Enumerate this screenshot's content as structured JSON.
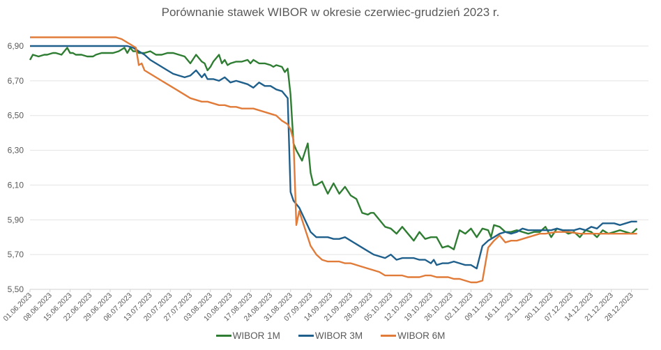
{
  "chart_data": {
    "type": "line",
    "title": "Porównanie stawek WIBOR w okresie czerwiec-grudzień 2023 r.",
    "xlabel": "",
    "ylabel": "",
    "ylim": [
      5.5,
      6.98
    ],
    "yticks": [
      "5,50",
      "5,70",
      "5,90",
      "6,10",
      "6,30",
      "6,50",
      "6,70",
      "6,90"
    ],
    "ytick_values": [
      5.5,
      5.7,
      5.9,
      6.1,
      6.3,
      6.5,
      6.7,
      6.9
    ],
    "grid": true,
    "legend_position": "bottom",
    "x_ticks": [
      "01.06.2023",
      "08.06.2023",
      "15.06.2023",
      "22.06.2023",
      "29.06.2023",
      "06.07.2023",
      "13.07.2023",
      "20.07.2023",
      "27.07.2023",
      "03.08.2023",
      "10.08.2023",
      "17.08.2023",
      "24.08.2023",
      "31.08.2023",
      "07.09.2023",
      "14.09.2023",
      "21.09.2023",
      "28.09.2023",
      "05.10.2023",
      "12.10.2023",
      "19.10.2023",
      "26.10.2023",
      "02.11.2023",
      "09.11.2023",
      "16.11.2023",
      "23.11.2023",
      "30.11.2023",
      "07.12.2023",
      "14.12.2023",
      "21.12.2023",
      "28.12.2023"
    ],
    "x_days_note": "x values are days since 01.06.2023",
    "series": [
      {
        "name": "WIBOR 1M",
        "color": "#2E7D32",
        "x": [
          0,
          1,
          3,
          5,
          6,
          8,
          9,
          11,
          13,
          14,
          15,
          16,
          18,
          20,
          22,
          23,
          25,
          27,
          29,
          31,
          33,
          34,
          35,
          36,
          37,
          38,
          40,
          42,
          44,
          46,
          48,
          50,
          52,
          54,
          56,
          58,
          60,
          61,
          62,
          63,
          64,
          66,
          67,
          68,
          69,
          70,
          72,
          74,
          76,
          77,
          78,
          80,
          82,
          84,
          85,
          86,
          88,
          89,
          90,
          91,
          92,
          93,
          95,
          97,
          98,
          99,
          100,
          102,
          104,
          106,
          108,
          110,
          112,
          114,
          116,
          118,
          119,
          120,
          122,
          124,
          126,
          128,
          130,
          132,
          133,
          134,
          136,
          138,
          140,
          142,
          144,
          146,
          148,
          150,
          152,
          154,
          156,
          158,
          160,
          161,
          162,
          164,
          166,
          168,
          170,
          172,
          174,
          176,
          178,
          180,
          182,
          184,
          186,
          188,
          190,
          192,
          194,
          196,
          198,
          200,
          202,
          204,
          206,
          208,
          210,
          212
        ],
        "values": [
          6.82,
          6.85,
          6.84,
          6.85,
          6.85,
          6.86,
          6.86,
          6.85,
          6.89,
          6.86,
          6.86,
          6.85,
          6.85,
          6.84,
          6.84,
          6.85,
          6.86,
          6.86,
          6.86,
          6.87,
          6.89,
          6.86,
          6.89,
          6.87,
          6.87,
          6.86,
          6.86,
          6.87,
          6.85,
          6.85,
          6.86,
          6.86,
          6.85,
          6.84,
          6.8,
          6.85,
          6.81,
          6.8,
          6.76,
          6.78,
          6.81,
          6.85,
          6.8,
          6.82,
          6.79,
          6.8,
          6.81,
          6.81,
          6.82,
          6.8,
          6.82,
          6.8,
          6.8,
          6.79,
          6.78,
          6.79,
          6.78,
          6.75,
          6.77,
          6.62,
          6.34,
          6.3,
          6.24,
          6.34,
          6.17,
          6.1,
          6.1,
          6.12,
          6.05,
          6.11,
          6.05,
          6.09,
          6.04,
          6.02,
          5.94,
          5.93,
          5.94,
          5.94,
          5.9,
          5.86,
          5.85,
          5.82,
          5.86,
          5.82,
          5.8,
          5.78,
          5.83,
          5.79,
          5.8,
          5.8,
          5.74,
          5.75,
          5.73,
          5.84,
          5.82,
          5.85,
          5.8,
          5.85,
          5.84,
          5.8,
          5.87,
          5.86,
          5.83,
          5.83,
          5.84,
          5.83,
          5.82,
          5.83,
          5.83,
          5.86,
          5.8,
          5.85,
          5.84,
          5.82,
          5.83,
          5.8,
          5.84,
          5.83,
          5.8,
          5.84,
          5.82,
          5.83,
          5.84,
          5.83,
          5.82,
          5.85
        ]
      },
      {
        "name": "WIBOR 3M",
        "color": "#1F5F8B",
        "x": [
          0,
          10,
          20,
          30,
          34,
          36,
          38,
          40,
          42,
          44,
          46,
          48,
          50,
          52,
          54,
          56,
          58,
          60,
          61,
          62,
          64,
          66,
          68,
          70,
          72,
          74,
          76,
          78,
          80,
          82,
          84,
          86,
          88,
          90,
          91,
          92,
          93,
          94,
          96,
          98,
          100,
          102,
          104,
          106,
          108,
          110,
          112,
          114,
          116,
          118,
          120,
          122,
          124,
          126,
          128,
          130,
          132,
          134,
          136,
          138,
          140,
          141,
          142,
          144,
          146,
          148,
          150,
          152,
          154,
          156,
          158,
          160,
          162,
          164,
          166,
          168,
          170,
          172,
          174,
          176,
          178,
          180,
          182,
          184,
          186,
          188,
          190,
          192,
          194,
          196,
          198,
          200,
          202,
          204,
          206,
          208,
          210,
          212
        ],
        "values": [
          6.9,
          6.9,
          6.9,
          6.9,
          6.9,
          6.89,
          6.87,
          6.85,
          6.82,
          6.8,
          6.78,
          6.76,
          6.74,
          6.73,
          6.72,
          6.73,
          6.76,
          6.72,
          6.74,
          6.71,
          6.71,
          6.7,
          6.72,
          6.69,
          6.7,
          6.69,
          6.68,
          6.66,
          6.69,
          6.67,
          6.67,
          6.65,
          6.64,
          6.6,
          6.06,
          6.01,
          5.99,
          5.97,
          5.9,
          5.83,
          5.8,
          5.8,
          5.8,
          5.79,
          5.79,
          5.8,
          5.78,
          5.76,
          5.74,
          5.72,
          5.7,
          5.69,
          5.68,
          5.7,
          5.67,
          5.68,
          5.68,
          5.68,
          5.67,
          5.67,
          5.65,
          5.67,
          5.64,
          5.65,
          5.65,
          5.66,
          5.65,
          5.64,
          5.64,
          5.62,
          5.75,
          5.78,
          5.8,
          5.82,
          5.83,
          5.82,
          5.83,
          5.85,
          5.84,
          5.84,
          5.84,
          5.84,
          5.84,
          5.85,
          5.84,
          5.84,
          5.84,
          5.85,
          5.84,
          5.86,
          5.85,
          5.88,
          5.88,
          5.88,
          5.87,
          5.88,
          5.89,
          5.89
        ]
      },
      {
        "name": "WIBOR 6M",
        "color": "#E07B39",
        "x": [
          0,
          20,
          30,
          32,
          34,
          35,
          36,
          37,
          38,
          39,
          40,
          42,
          44,
          46,
          48,
          50,
          52,
          54,
          56,
          58,
          60,
          62,
          64,
          66,
          68,
          70,
          72,
          74,
          76,
          78,
          80,
          82,
          84,
          86,
          88,
          90,
          91,
          92,
          93,
          94,
          96,
          98,
          100,
          102,
          104,
          106,
          108,
          110,
          112,
          114,
          116,
          118,
          120,
          122,
          124,
          126,
          128,
          130,
          132,
          134,
          136,
          138,
          140,
          142,
          144,
          146,
          148,
          150,
          152,
          154,
          156,
          158,
          160,
          162,
          164,
          166,
          168,
          170,
          172,
          174,
          176,
          178,
          180,
          184,
          188,
          192,
          196,
          200,
          204,
          208,
          212
        ],
        "values": [
          6.95,
          6.95,
          6.95,
          6.94,
          6.92,
          6.91,
          6.9,
          6.89,
          6.79,
          6.8,
          6.76,
          6.74,
          6.72,
          6.7,
          6.68,
          6.66,
          6.64,
          6.62,
          6.6,
          6.59,
          6.58,
          6.58,
          6.57,
          6.56,
          6.56,
          6.55,
          6.55,
          6.54,
          6.54,
          6.54,
          6.53,
          6.52,
          6.51,
          6.5,
          6.47,
          6.45,
          6.42,
          6.36,
          5.87,
          5.95,
          5.85,
          5.75,
          5.7,
          5.67,
          5.66,
          5.66,
          5.66,
          5.65,
          5.65,
          5.64,
          5.63,
          5.62,
          5.61,
          5.6,
          5.58,
          5.58,
          5.58,
          5.58,
          5.57,
          5.57,
          5.57,
          5.58,
          5.58,
          5.57,
          5.57,
          5.57,
          5.56,
          5.56,
          5.55,
          5.54,
          5.54,
          5.55,
          5.74,
          5.78,
          5.81,
          5.77,
          5.78,
          5.78,
          5.79,
          5.8,
          5.81,
          5.82,
          5.82,
          5.83,
          5.83,
          5.82,
          5.82,
          5.82,
          5.82,
          5.82,
          5.82
        ]
      }
    ]
  },
  "legend": {
    "items": [
      {
        "label": "WIBOR 1M",
        "color": "#2E7D32"
      },
      {
        "label": "WIBOR 3M",
        "color": "#1F5F8B"
      },
      {
        "label": "WIBOR 6M",
        "color": "#E07B39"
      }
    ]
  }
}
